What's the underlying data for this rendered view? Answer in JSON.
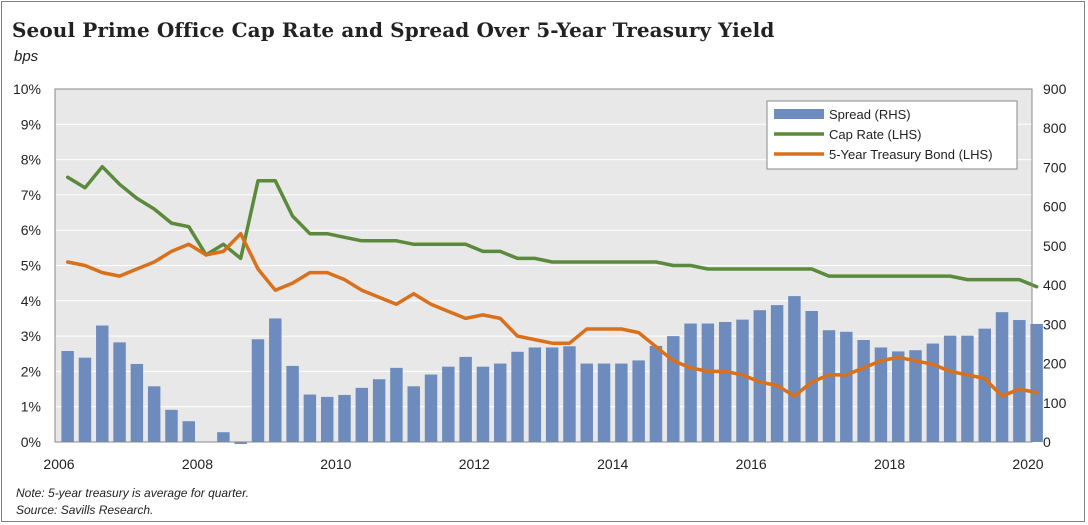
{
  "title": "Seoul Prime Office Cap Rate and Spread Over 5-Year Treasury Yield",
  "subtitle": "bps",
  "notes": [
    "Note: 5-year treasury is average for quarter.",
    "Source: Savills Research."
  ],
  "colors": {
    "spread": "#6d8cbd",
    "cap_rate": "#5b8a3c",
    "treasury": "#d8701c",
    "plot_bg": "#e8e8e8",
    "grid": "#ffffff"
  },
  "chart_data": {
    "type": "bar",
    "title": "Seoul Prime Office Cap Rate and Spread Over 5-Year Treasury Yield",
    "x_ticks": [
      "2006",
      "2008",
      "2010",
      "2012",
      "2014",
      "2016",
      "2018",
      "2020"
    ],
    "x_range": [
      2006,
      2020
    ],
    "y_left": {
      "ticks": [
        "0%",
        "1%",
        "2%",
        "3%",
        "4%",
        "5%",
        "6%",
        "7%",
        "8%",
        "9%",
        "10%"
      ],
      "range": [
        0,
        10
      ]
    },
    "y_right": {
      "ticks": [
        "0",
        "100",
        "200",
        "300",
        "400",
        "500",
        "600",
        "700",
        "800",
        "900"
      ],
      "range": [
        0,
        900
      ]
    },
    "grid": true,
    "legend": {
      "position": "top-right",
      "entries": [
        "Spread (RHS)",
        "Cap Rate (LHS)",
        "5-Year Treasury Bond (LHS)"
      ]
    },
    "x": [
      2006.0,
      2006.25,
      2006.5,
      2006.75,
      2007.0,
      2007.25,
      2007.5,
      2007.75,
      2008.0,
      2008.25,
      2008.5,
      2008.75,
      2009.0,
      2009.25,
      2009.5,
      2009.75,
      2010.0,
      2010.25,
      2010.5,
      2010.75,
      2011.0,
      2011.25,
      2011.5,
      2011.75,
      2012.0,
      2012.25,
      2012.5,
      2012.75,
      2013.0,
      2013.25,
      2013.5,
      2013.75,
      2014.0,
      2014.25,
      2014.5,
      2014.75,
      2015.0,
      2015.25,
      2015.5,
      2015.75,
      2016.0,
      2016.25,
      2016.5,
      2016.75,
      2017.0,
      2017.25,
      2017.5,
      2017.75,
      2018.0,
      2018.25,
      2018.5,
      2018.75,
      2019.0,
      2019.25,
      2019.5,
      2019.75,
      2020.0
    ],
    "series": [
      {
        "name": "Spread (RHS)",
        "type": "bar",
        "axis": "right",
        "values": [
          232,
          215,
          297,
          254,
          199,
          142,
          82,
          53,
          0,
          25,
          -5,
          262,
          315,
          194,
          121,
          115,
          120,
          138,
          160,
          189,
          142,
          172,
          192,
          217,
          192,
          200,
          230,
          241,
          241,
          244,
          200,
          200,
          200,
          208,
          245,
          270,
          302,
          302,
          306,
          312,
          336,
          349,
          372,
          334,
          285,
          281,
          260,
          241,
          231,
          234,
          251,
          271,
          271,
          289,
          331,
          311,
          301
        ]
      },
      {
        "name": "Cap Rate (LHS)",
        "type": "line",
        "axis": "left",
        "values": [
          7.5,
          7.2,
          7.8,
          7.3,
          6.9,
          6.6,
          6.2,
          6.1,
          5.3,
          5.6,
          5.2,
          7.4,
          7.4,
          6.4,
          5.9,
          5.9,
          5.8,
          5.7,
          5.7,
          5.7,
          5.6,
          5.6,
          5.6,
          5.6,
          5.4,
          5.4,
          5.2,
          5.2,
          5.1,
          5.1,
          5.1,
          5.1,
          5.1,
          5.1,
          5.1,
          5.0,
          5.0,
          4.9,
          4.9,
          4.9,
          4.9,
          4.9,
          4.9,
          4.9,
          4.7,
          4.7,
          4.7,
          4.7,
          4.7,
          4.7,
          4.7,
          4.7,
          4.6,
          4.6,
          4.6,
          4.6,
          4.4
        ]
      },
      {
        "name": "5-Year Treasury Bond (LHS)",
        "type": "line",
        "axis": "left",
        "values": [
          5.1,
          5.0,
          4.8,
          4.7,
          4.9,
          5.1,
          5.4,
          5.6,
          5.3,
          5.4,
          5.9,
          4.9,
          4.3,
          4.5,
          4.8,
          4.8,
          4.6,
          4.3,
          4.1,
          3.9,
          4.2,
          3.9,
          3.7,
          3.5,
          3.6,
          3.5,
          3.0,
          2.9,
          2.8,
          2.8,
          3.2,
          3.2,
          3.2,
          3.1,
          2.7,
          2.3,
          2.1,
          2.0,
          2.0,
          1.9,
          1.7,
          1.6,
          1.3,
          1.7,
          1.9,
          1.9,
          2.1,
          2.3,
          2.4,
          2.3,
          2.2,
          2.0,
          1.9,
          1.8,
          1.3,
          1.5,
          1.4
        ]
      }
    ]
  }
}
